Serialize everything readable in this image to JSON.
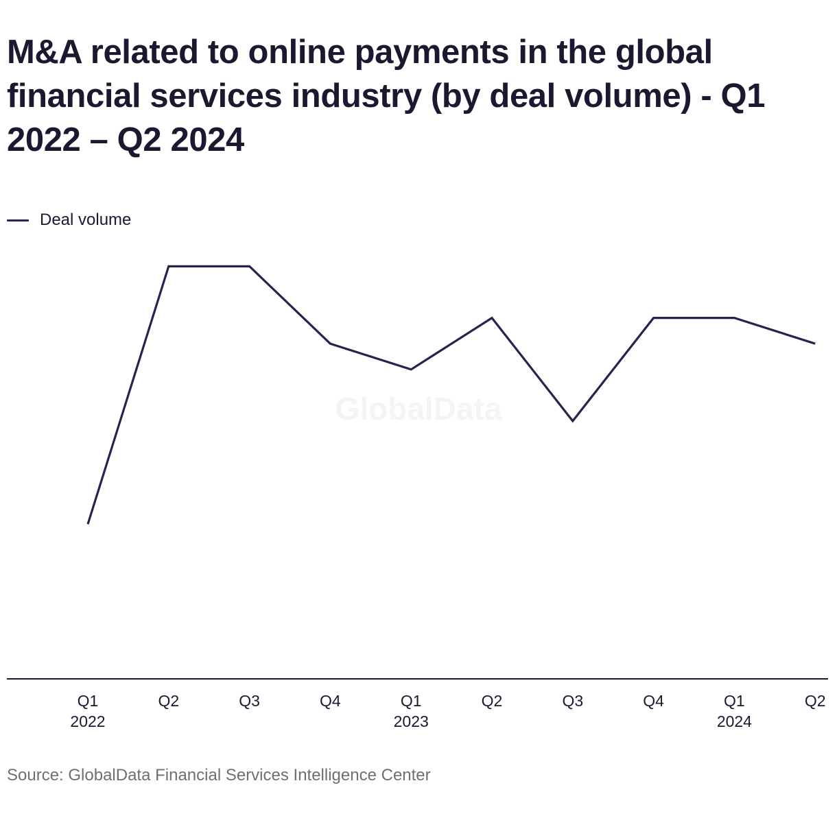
{
  "title": "M&A related to online payments in the global financial services industry (by deal volume) - Q1 2022 – Q2 2024",
  "watermark": "GlobalData",
  "source": "Source: GlobalData Financial Services Intelligence Center",
  "colors": {
    "line": "#2e1f4d",
    "axis": "#1b1830",
    "text": "#1b1830",
    "source": "#6f6f72",
    "watermark": "#f4f4f6"
  },
  "chart_data": {
    "type": "line",
    "title": "M&A related to online payments in the global financial services industry (by deal volume) - Q1 2022 – Q2 2024",
    "xlabel": "",
    "ylabel": "",
    "categories": [
      "Q1 2022",
      "Q2",
      "Q3",
      "Q4",
      "Q1 2023",
      "Q2",
      "Q3",
      "Q4",
      "Q1 2024",
      "Q2"
    ],
    "tick_labels": [
      [
        "Q1",
        "2022"
      ],
      [
        "Q2"
      ],
      [
        "Q3"
      ],
      [
        "Q4"
      ],
      [
        "Q1",
        "2023"
      ],
      [
        "Q2"
      ],
      [
        "Q3"
      ],
      [
        "Q4"
      ],
      [
        "Q1",
        "2024"
      ],
      [
        "Q2"
      ]
    ],
    "series": [
      {
        "name": "Deal volume",
        "values": [
          6,
          16,
          16,
          13,
          12,
          14,
          10,
          14,
          14,
          13
        ]
      }
    ],
    "ylim": [
      0,
      22.3
    ],
    "y_axis_shown": false,
    "grid": false,
    "legend": "top-left"
  }
}
